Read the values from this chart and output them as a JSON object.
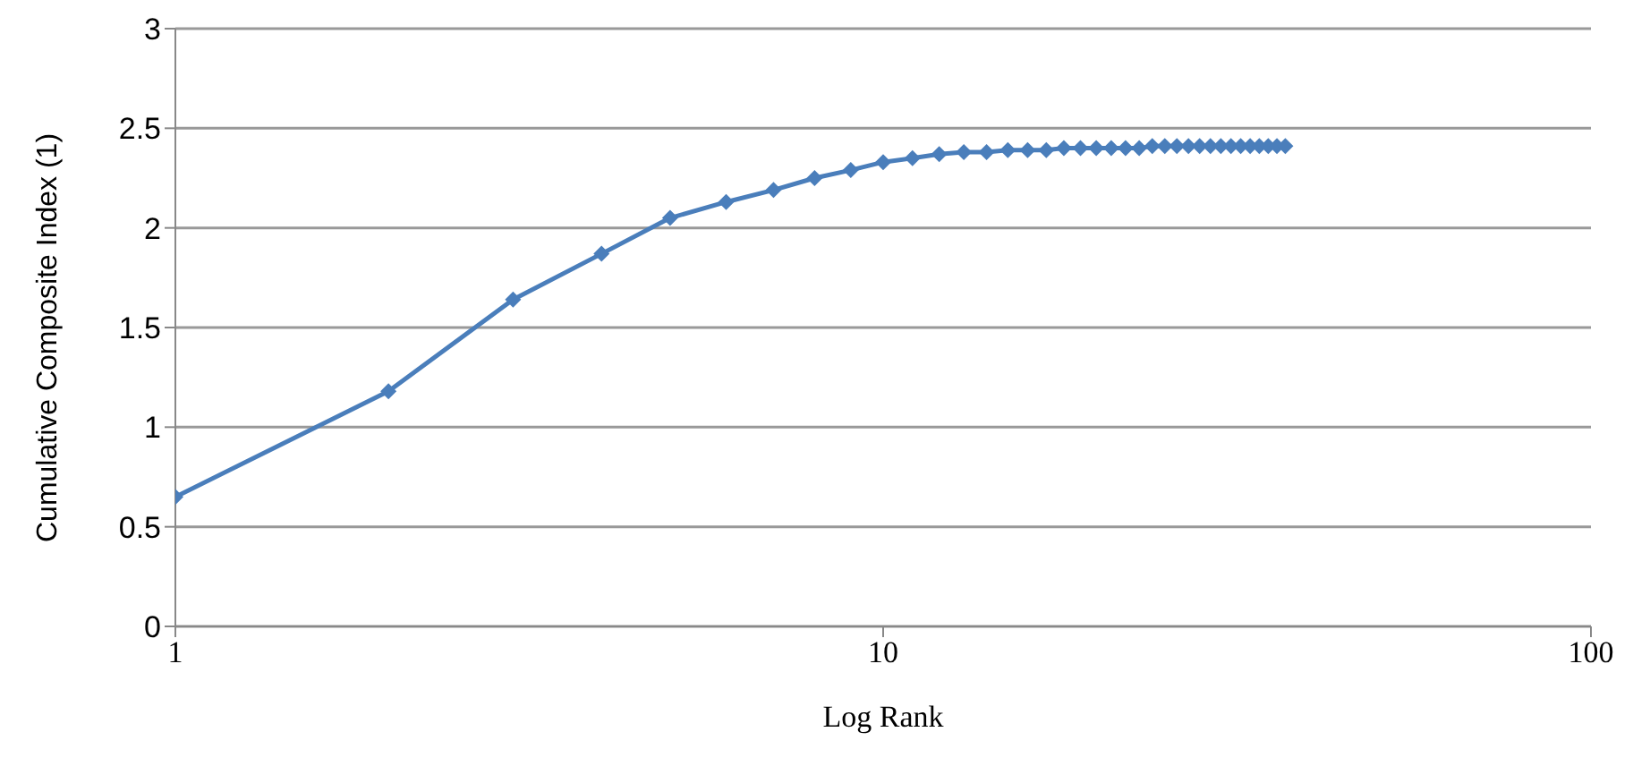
{
  "chart_data": {
    "type": "line",
    "xlabel": "Log Rank",
    "ylabel": "Cumulative Composite Index (1)",
    "x": [
      1,
      2,
      3,
      4,
      5,
      6,
      7,
      8,
      9,
      10,
      11,
      12,
      13,
      14,
      15,
      16,
      17,
      18,
      19,
      20,
      21,
      22,
      23,
      24,
      25,
      26,
      27,
      28,
      29,
      30,
      31,
      32,
      33,
      34,
      35,
      36,
      37
    ],
    "series": [
      {
        "color": "#4a7ebb",
        "values": [
          0.65,
          1.18,
          1.64,
          1.87,
          2.05,
          2.13,
          2.19,
          2.25,
          2.29,
          2.33,
          2.35,
          2.37,
          2.38,
          2.38,
          2.39,
          2.39,
          2.39,
          2.4,
          2.4,
          2.4,
          2.4,
          2.4,
          2.4,
          2.41,
          2.41,
          2.41,
          2.41,
          2.41,
          2.41,
          2.41,
          2.41,
          2.41,
          2.41,
          2.41,
          2.41,
          2.41,
          2.41
        ]
      }
    ],
    "log": "x",
    "xlim": [
      1,
      100
    ],
    "xticks": [
      1,
      10,
      100
    ],
    "ylim": [
      0,
      3
    ],
    "yticks": [
      0,
      0.5,
      1,
      1.5,
      2,
      2.5,
      3
    ],
    "grid": "y",
    "marker": "diamond",
    "line_style": "solid",
    "legend": false
  }
}
